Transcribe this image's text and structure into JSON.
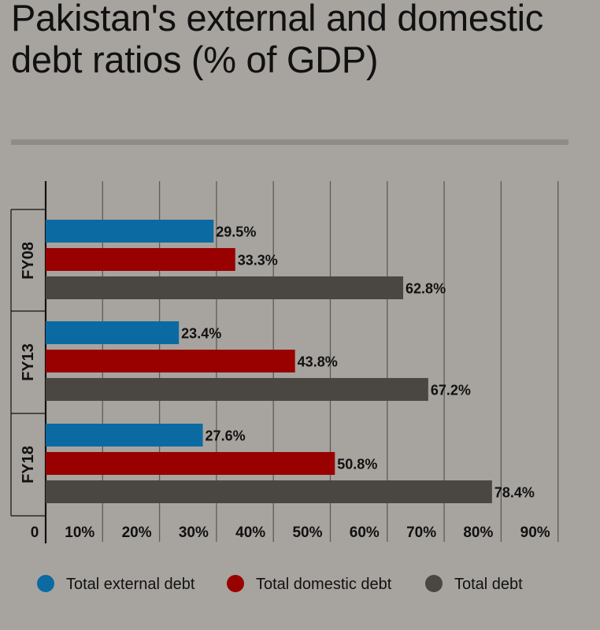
{
  "chart_data": {
    "type": "bar",
    "orientation": "horizontal",
    "title": "Pakistan's external and domestic debt ratios (% of GDP)",
    "categories": [
      "FY08",
      "FY13",
      "FY18"
    ],
    "series": [
      {
        "name": "Total external debt",
        "color": "#0b6aa2",
        "values": [
          29.5,
          23.4,
          27.6
        ]
      },
      {
        "name": "Total domestic debt",
        "color": "#990000",
        "values": [
          33.3,
          43.8,
          50.8
        ]
      },
      {
        "name": "Total debt",
        "color": "#4a4743",
        "values": [
          62.8,
          67.2,
          78.4
        ]
      }
    ],
    "xlim": [
      0,
      90
    ],
    "xticks": [
      0,
      10,
      20,
      30,
      40,
      50,
      60,
      70,
      80,
      90
    ],
    "xtick_labels": [
      "0",
      "10%",
      "20%",
      "30%",
      "40%",
      "50%",
      "60%",
      "70%",
      "80%",
      "90%"
    ],
    "data_labels": [
      [
        "29.5%",
        "23.4%",
        "27.6%"
      ],
      [
        "33.3%",
        "43.8%",
        "50.8%"
      ],
      [
        "62.8%",
        "67.2%",
        "78.4%"
      ]
    ],
    "grid": true,
    "legend_position": "bottom"
  }
}
